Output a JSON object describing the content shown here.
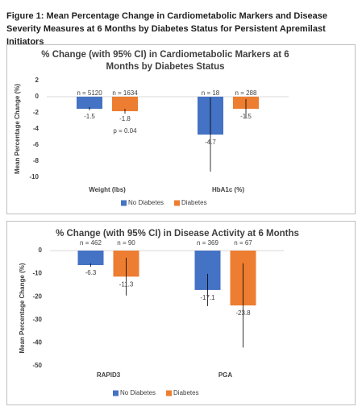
{
  "title": "Figure 1: Mean Percentage Change in Cardiometabolic Markers and Disease Severity Measures at 6 Months by Diabetes Status for Persistent Apremilast Initiators",
  "chart_data": [
    {
      "type": "bar",
      "title": "% Change (with 95% CI) in Cardiometabolic Markers at 6 Months by Diabetes Status",
      "y_label": "Mean Percentage Change (%)",
      "categories": [
        "Weight (lbs)",
        "HbA1c (%)"
      ],
      "series": [
        {
          "name": "No Diabetes",
          "color": "#4472c4",
          "values": [
            -1.5,
            -4.7
          ],
          "errors": [
            0.2,
            4.6
          ],
          "n_labels": [
            "n = 5120",
            "n = 18"
          ]
        },
        {
          "name": "Diabetes",
          "color": "#ed7d31",
          "values": [
            -1.8,
            -1.5
          ],
          "errors": [
            0.3,
            1.2
          ],
          "n_labels": [
            "n = 1634",
            "n = 288"
          ]
        }
      ],
      "annotations": [
        "p = 0.04"
      ],
      "ylim": [
        -10,
        2
      ],
      "yticks": [
        -10,
        -8,
        -6,
        -4,
        -2,
        0,
        2
      ],
      "legend": "bottom"
    },
    {
      "type": "bar",
      "title": "% Change (with 95% CI) in Disease Activity at 6 Months",
      "y_label": "Mean Percentage Change (%)",
      "categories": [
        "RAPID3",
        "PGA"
      ],
      "series": [
        {
          "name": "No Diabetes",
          "color": "#4472c4",
          "values": [
            -6.3,
            -17.1
          ],
          "errors": [
            0.7,
            7.0
          ],
          "n_labels": [
            "n = 462",
            "n = 369"
          ]
        },
        {
          "name": "Diabetes",
          "color": "#ed7d31",
          "values": [
            -11.3,
            -23.8
          ],
          "errors": [
            8.2,
            18.3
          ],
          "n_labels": [
            "n = 90",
            "n = 67"
          ]
        }
      ],
      "ylim": [
        -50,
        0
      ],
      "yticks": [
        -50,
        -40,
        -30,
        -20,
        -10,
        0
      ],
      "legend": "bottom"
    }
  ]
}
